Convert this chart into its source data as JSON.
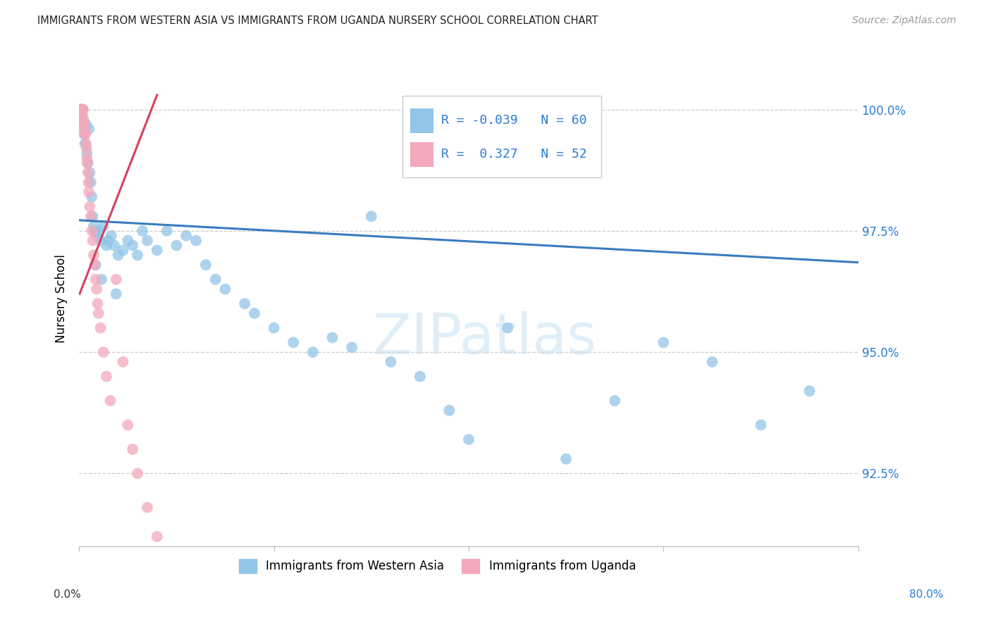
{
  "title": "IMMIGRANTS FROM WESTERN ASIA VS IMMIGRANTS FROM UGANDA NURSERY SCHOOL CORRELATION CHART",
  "source": "Source: ZipAtlas.com",
  "ylabel": "Nursery School",
  "ytick_values": [
    92.5,
    95.0,
    97.5,
    100.0
  ],
  "ytick_labels": [
    "92.5%",
    "95.0%",
    "97.5%",
    "100.0%"
  ],
  "xlim": [
    0.0,
    80.0
  ],
  "ylim": [
    91.0,
    101.2
  ],
  "blue_color": "#92c5e8",
  "pink_color": "#f4a8bb",
  "blue_line_color": "#3a7bbf",
  "pink_line_color": "#d44060",
  "blue_R": "-0.039",
  "blue_N": "60",
  "pink_R": "0.327",
  "pink_N": "52",
  "blue_scatter_x": [
    0.2,
    0.3,
    0.4,
    0.5,
    0.6,
    0.7,
    0.8,
    0.9,
    1.0,
    1.1,
    1.2,
    1.3,
    1.4,
    1.5,
    1.6,
    1.8,
    2.0,
    2.2,
    2.5,
    2.8,
    3.0,
    3.3,
    3.6,
    4.0,
    4.5,
    5.0,
    5.5,
    6.0,
    7.0,
    8.0,
    9.0,
    10.0,
    11.0,
    12.0,
    13.0,
    14.0,
    15.0,
    17.0,
    18.0,
    20.0,
    22.0,
    24.0,
    26.0,
    28.0,
    32.0,
    35.0,
    38.0,
    40.0,
    44.0,
    50.0,
    55.0,
    60.0,
    65.0,
    70.0,
    75.0,
    1.7,
    2.3,
    3.8,
    6.5,
    30.0
  ],
  "blue_scatter_y": [
    100.0,
    99.8,
    100.0,
    99.5,
    99.3,
    99.7,
    99.1,
    98.9,
    99.6,
    98.7,
    98.5,
    98.2,
    97.8,
    97.6,
    97.5,
    97.4,
    97.5,
    97.3,
    97.6,
    97.2,
    97.3,
    97.4,
    97.2,
    97.0,
    97.1,
    97.3,
    97.2,
    97.0,
    97.3,
    97.1,
    97.5,
    97.2,
    97.4,
    97.3,
    96.8,
    96.5,
    96.3,
    96.0,
    95.8,
    95.5,
    95.2,
    95.0,
    95.3,
    95.1,
    94.8,
    94.5,
    93.8,
    93.2,
    95.5,
    92.8,
    94.0,
    95.2,
    94.8,
    93.5,
    94.2,
    96.8,
    96.5,
    96.2,
    97.5,
    97.8
  ],
  "pink_scatter_x": [
    0.05,
    0.08,
    0.1,
    0.12,
    0.15,
    0.18,
    0.2,
    0.22,
    0.25,
    0.28,
    0.3,
    0.35,
    0.4,
    0.45,
    0.5,
    0.55,
    0.6,
    0.65,
    0.7,
    0.75,
    0.8,
    0.85,
    0.9,
    0.95,
    1.0,
    1.1,
    1.2,
    1.3,
    1.4,
    1.5,
    1.6,
    1.7,
    1.8,
    1.9,
    2.0,
    2.2,
    2.5,
    2.8,
    3.2,
    3.8,
    4.5,
    5.0,
    5.5,
    6.0,
    7.0,
    8.0,
    0.07,
    0.13,
    0.17,
    0.23,
    0.32,
    0.42
  ],
  "pink_scatter_y": [
    100.0,
    100.0,
    100.0,
    100.0,
    100.0,
    100.0,
    100.0,
    100.0,
    100.0,
    100.0,
    100.0,
    100.0,
    100.0,
    99.8,
    99.7,
    99.6,
    99.5,
    99.5,
    99.3,
    99.2,
    99.0,
    98.9,
    98.7,
    98.5,
    98.3,
    98.0,
    97.8,
    97.5,
    97.3,
    97.0,
    96.8,
    96.5,
    96.3,
    96.0,
    95.8,
    95.5,
    95.0,
    94.5,
    94.0,
    96.5,
    94.8,
    93.5,
    93.0,
    92.5,
    91.8,
    91.2,
    100.0,
    100.0,
    100.0,
    100.0,
    99.9,
    99.7
  ],
  "blue_trendline_x": [
    0.0,
    80.0
  ],
  "blue_trendline_y": [
    97.72,
    96.85
  ],
  "pink_trendline_x": [
    0.05,
    8.0
  ],
  "pink_trendline_y": [
    96.2,
    100.3
  ]
}
